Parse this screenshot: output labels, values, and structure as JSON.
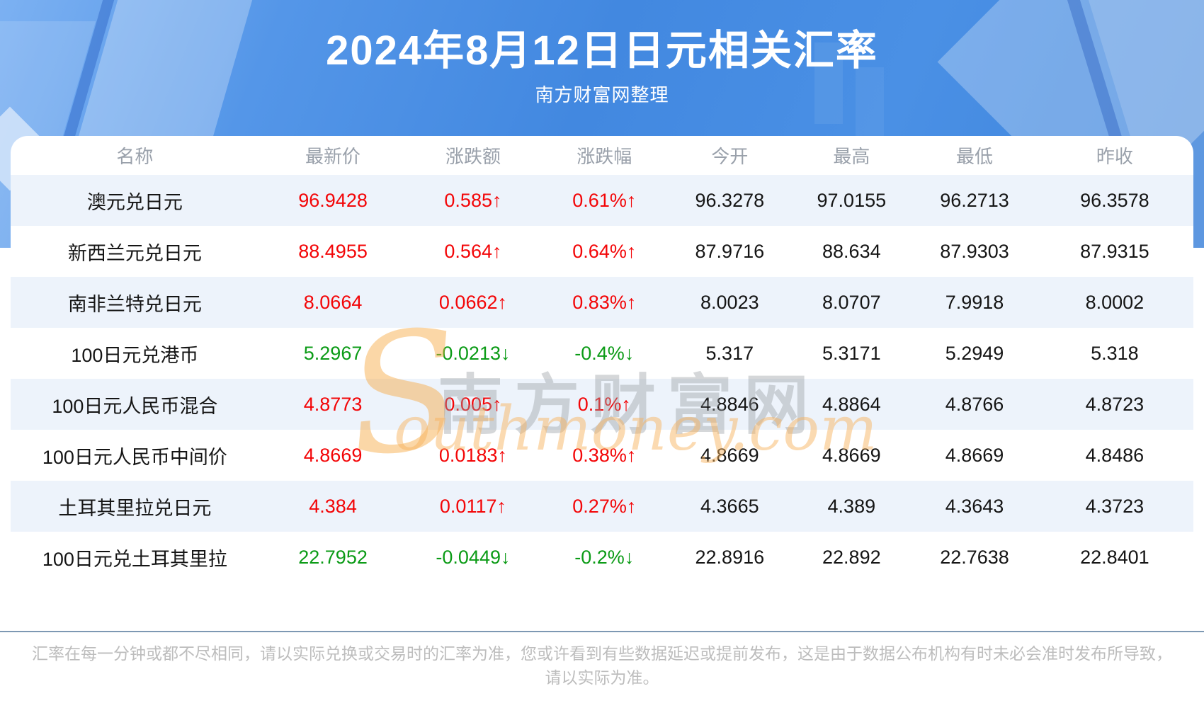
{
  "header": {
    "title": "2024年8月12日日元相关汇率",
    "subtitle": "南方财富网整理"
  },
  "table": {
    "columns": [
      "名称",
      "最新价",
      "涨跌额",
      "涨跌幅",
      "今开",
      "最高",
      "最低",
      "昨收"
    ],
    "rows": [
      {
        "name": "澳元兑日元",
        "latest": "96.9428",
        "change": "0.585↑",
        "change_pct": "0.61%↑",
        "open": "96.3278",
        "high": "97.0155",
        "low": "96.2713",
        "prev_close": "96.3578",
        "trend": "up"
      },
      {
        "name": "新西兰元兑日元",
        "latest": "88.4955",
        "change": "0.564↑",
        "change_pct": "0.64%↑",
        "open": "87.9716",
        "high": "88.634",
        "low": "87.9303",
        "prev_close": "87.9315",
        "trend": "up"
      },
      {
        "name": "南非兰特兑日元",
        "latest": "8.0664",
        "change": "0.0662↑",
        "change_pct": "0.83%↑",
        "open": "8.0023",
        "high": "8.0707",
        "low": "7.9918",
        "prev_close": "8.0002",
        "trend": "up"
      },
      {
        "name": "100日元兑港币",
        "latest": "5.2967",
        "change": "-0.0213↓",
        "change_pct": "-0.4%↓",
        "open": "5.317",
        "high": "5.3171",
        "low": "5.2949",
        "prev_close": "5.318",
        "trend": "down"
      },
      {
        "name": "100日元人民币混合",
        "latest": "4.8773",
        "change": "0.005↑",
        "change_pct": "0.1%↑",
        "open": "4.8846",
        "high": "4.8864",
        "low": "4.8766",
        "prev_close": "4.8723",
        "trend": "up"
      },
      {
        "name": "100日元人民币中间价",
        "latest": "4.8669",
        "change": "0.0183↑",
        "change_pct": "0.38%↑",
        "open": "4.8669",
        "high": "4.8669",
        "low": "4.8669",
        "prev_close": "4.8486",
        "trend": "up"
      },
      {
        "name": "土耳其里拉兑日元",
        "latest": "4.384",
        "change": "0.0117↑",
        "change_pct": "0.27%↑",
        "open": "4.3665",
        "high": "4.389",
        "low": "4.3643",
        "prev_close": "4.3723",
        "trend": "up"
      },
      {
        "name": "100日元兑土耳其里拉",
        "latest": "22.7952",
        "change": "-0.0449↓",
        "change_pct": "-0.2%↓",
        "open": "22.8916",
        "high": "22.892",
        "low": "22.7638",
        "prev_close": "22.8401",
        "trend": "down"
      }
    ]
  },
  "watermark": {
    "s": "S",
    "cjk": "南方财富网",
    "latin": "outhmoney.com"
  },
  "footer": {
    "line1": "汇率在每一分钟或都不尽相同，请以实际兑换或交易时的汇率为准，您或许看到有些数据延迟或提前发布，这是由于数据公布机构有时未必会准时发布所导致，",
    "line2": "请以实际为准。"
  },
  "colors": {
    "up": "#f30507",
    "down": "#0b9b16",
    "banner_blue": "#4288e0",
    "row_alt": "#edf3fb"
  }
}
